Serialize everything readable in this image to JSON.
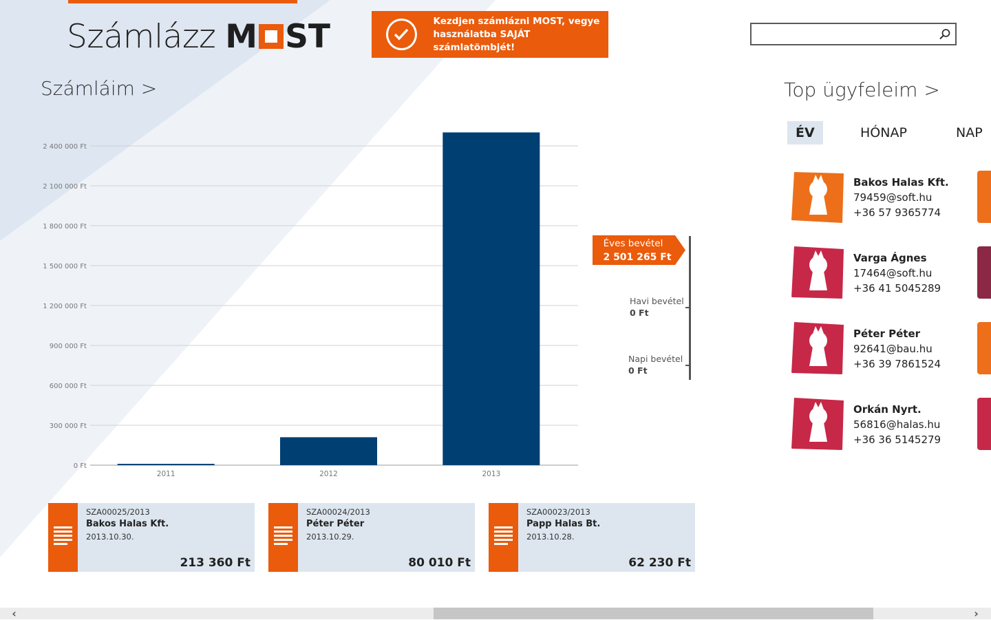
{
  "colors": {
    "accent": "#ea5b0c",
    "bar": "#003f72",
    "tile_bg": "#dde6ef",
    "avatar_orange": "#ee6f1a",
    "avatar_pink": "#c72848"
  },
  "header": {
    "logo_light": "Számlázz",
    "logo_bold_prefix": "M",
    "logo_bold_suffix": "ST",
    "banner": {
      "icon": "check-circle-icon",
      "line1": "Kezdjen számlázni MOST, vegye",
      "line2": "használatba SAJÁT számlatömbjét!"
    },
    "search": {
      "placeholder": "",
      "icon": "search-icon"
    }
  },
  "invoices_section": {
    "title": "Számláim >"
  },
  "chart_data": {
    "type": "bar",
    "categories": [
      "2011",
      "2012",
      "2013"
    ],
    "values": [
      10000,
      210000,
      2501265
    ],
    "ylim": [
      0,
      2400000
    ],
    "yticks": [
      "0 Ft",
      "300 000 Ft",
      "600 000 Ft",
      "900 000 Ft",
      "1 200 000 Ft",
      "1 500 000 Ft",
      "1 800 000 Ft",
      "2 100 000 Ft",
      "2 400 000 Ft"
    ],
    "grid": true,
    "color": "#003f72"
  },
  "revenue": {
    "annual_label": "Éves bevétel",
    "annual_value": "2 501 265 Ft",
    "monthly_label": "Havi bevétel",
    "monthly_value": "0 Ft",
    "daily_label": "Napi bevétel",
    "daily_value": "0 Ft"
  },
  "invoices": [
    {
      "number": "SZA00025/2013",
      "client": "Bakos Halas Kft.",
      "date": "2013.10.30.",
      "amount": "213 360 Ft",
      "icon": "document-icon"
    },
    {
      "number": "SZA00024/2013",
      "client": "Péter Péter",
      "date": "2013.10.29.",
      "amount": "80 010 Ft",
      "icon": "document-icon"
    },
    {
      "number": "SZA00023/2013",
      "client": "Papp Halas Bt.",
      "date": "2013.10.28.",
      "amount": "62 230 Ft",
      "icon": "document-icon"
    }
  ],
  "top_clients": {
    "title": "Top ügyfeleim >",
    "tabs": [
      {
        "label": "ÉV",
        "active": true
      },
      {
        "label": "HÓNAP",
        "active": false
      },
      {
        "label": "NAP",
        "active": false
      }
    ],
    "clients": [
      {
        "name": "Bakos Halas Kft.",
        "email": "79459@soft.hu",
        "phone": "+36 57 9365774",
        "avatar_color": "#ee6f1a",
        "avatar_icon": "user-avatar-icon"
      },
      {
        "name": "Varga Ágnes",
        "email": "17464@soft.hu",
        "phone": "+36 41 5045289",
        "avatar_color": "#c72848",
        "avatar_icon": "user-avatar-icon"
      },
      {
        "name": "Péter Péter",
        "email": "92641@bau.hu",
        "phone": "+36 39 7861524",
        "avatar_color": "#c72848",
        "avatar_icon": "user-avatar-icon"
      },
      {
        "name": "Orkán Nyrt.",
        "email": "56816@halas.hu",
        "phone": "+36 36 5145279",
        "avatar_color": "#c72848",
        "avatar_icon": "user-avatar-icon"
      }
    ]
  },
  "scrollbar": {
    "left_arrow": "‹",
    "right_arrow": "›"
  }
}
